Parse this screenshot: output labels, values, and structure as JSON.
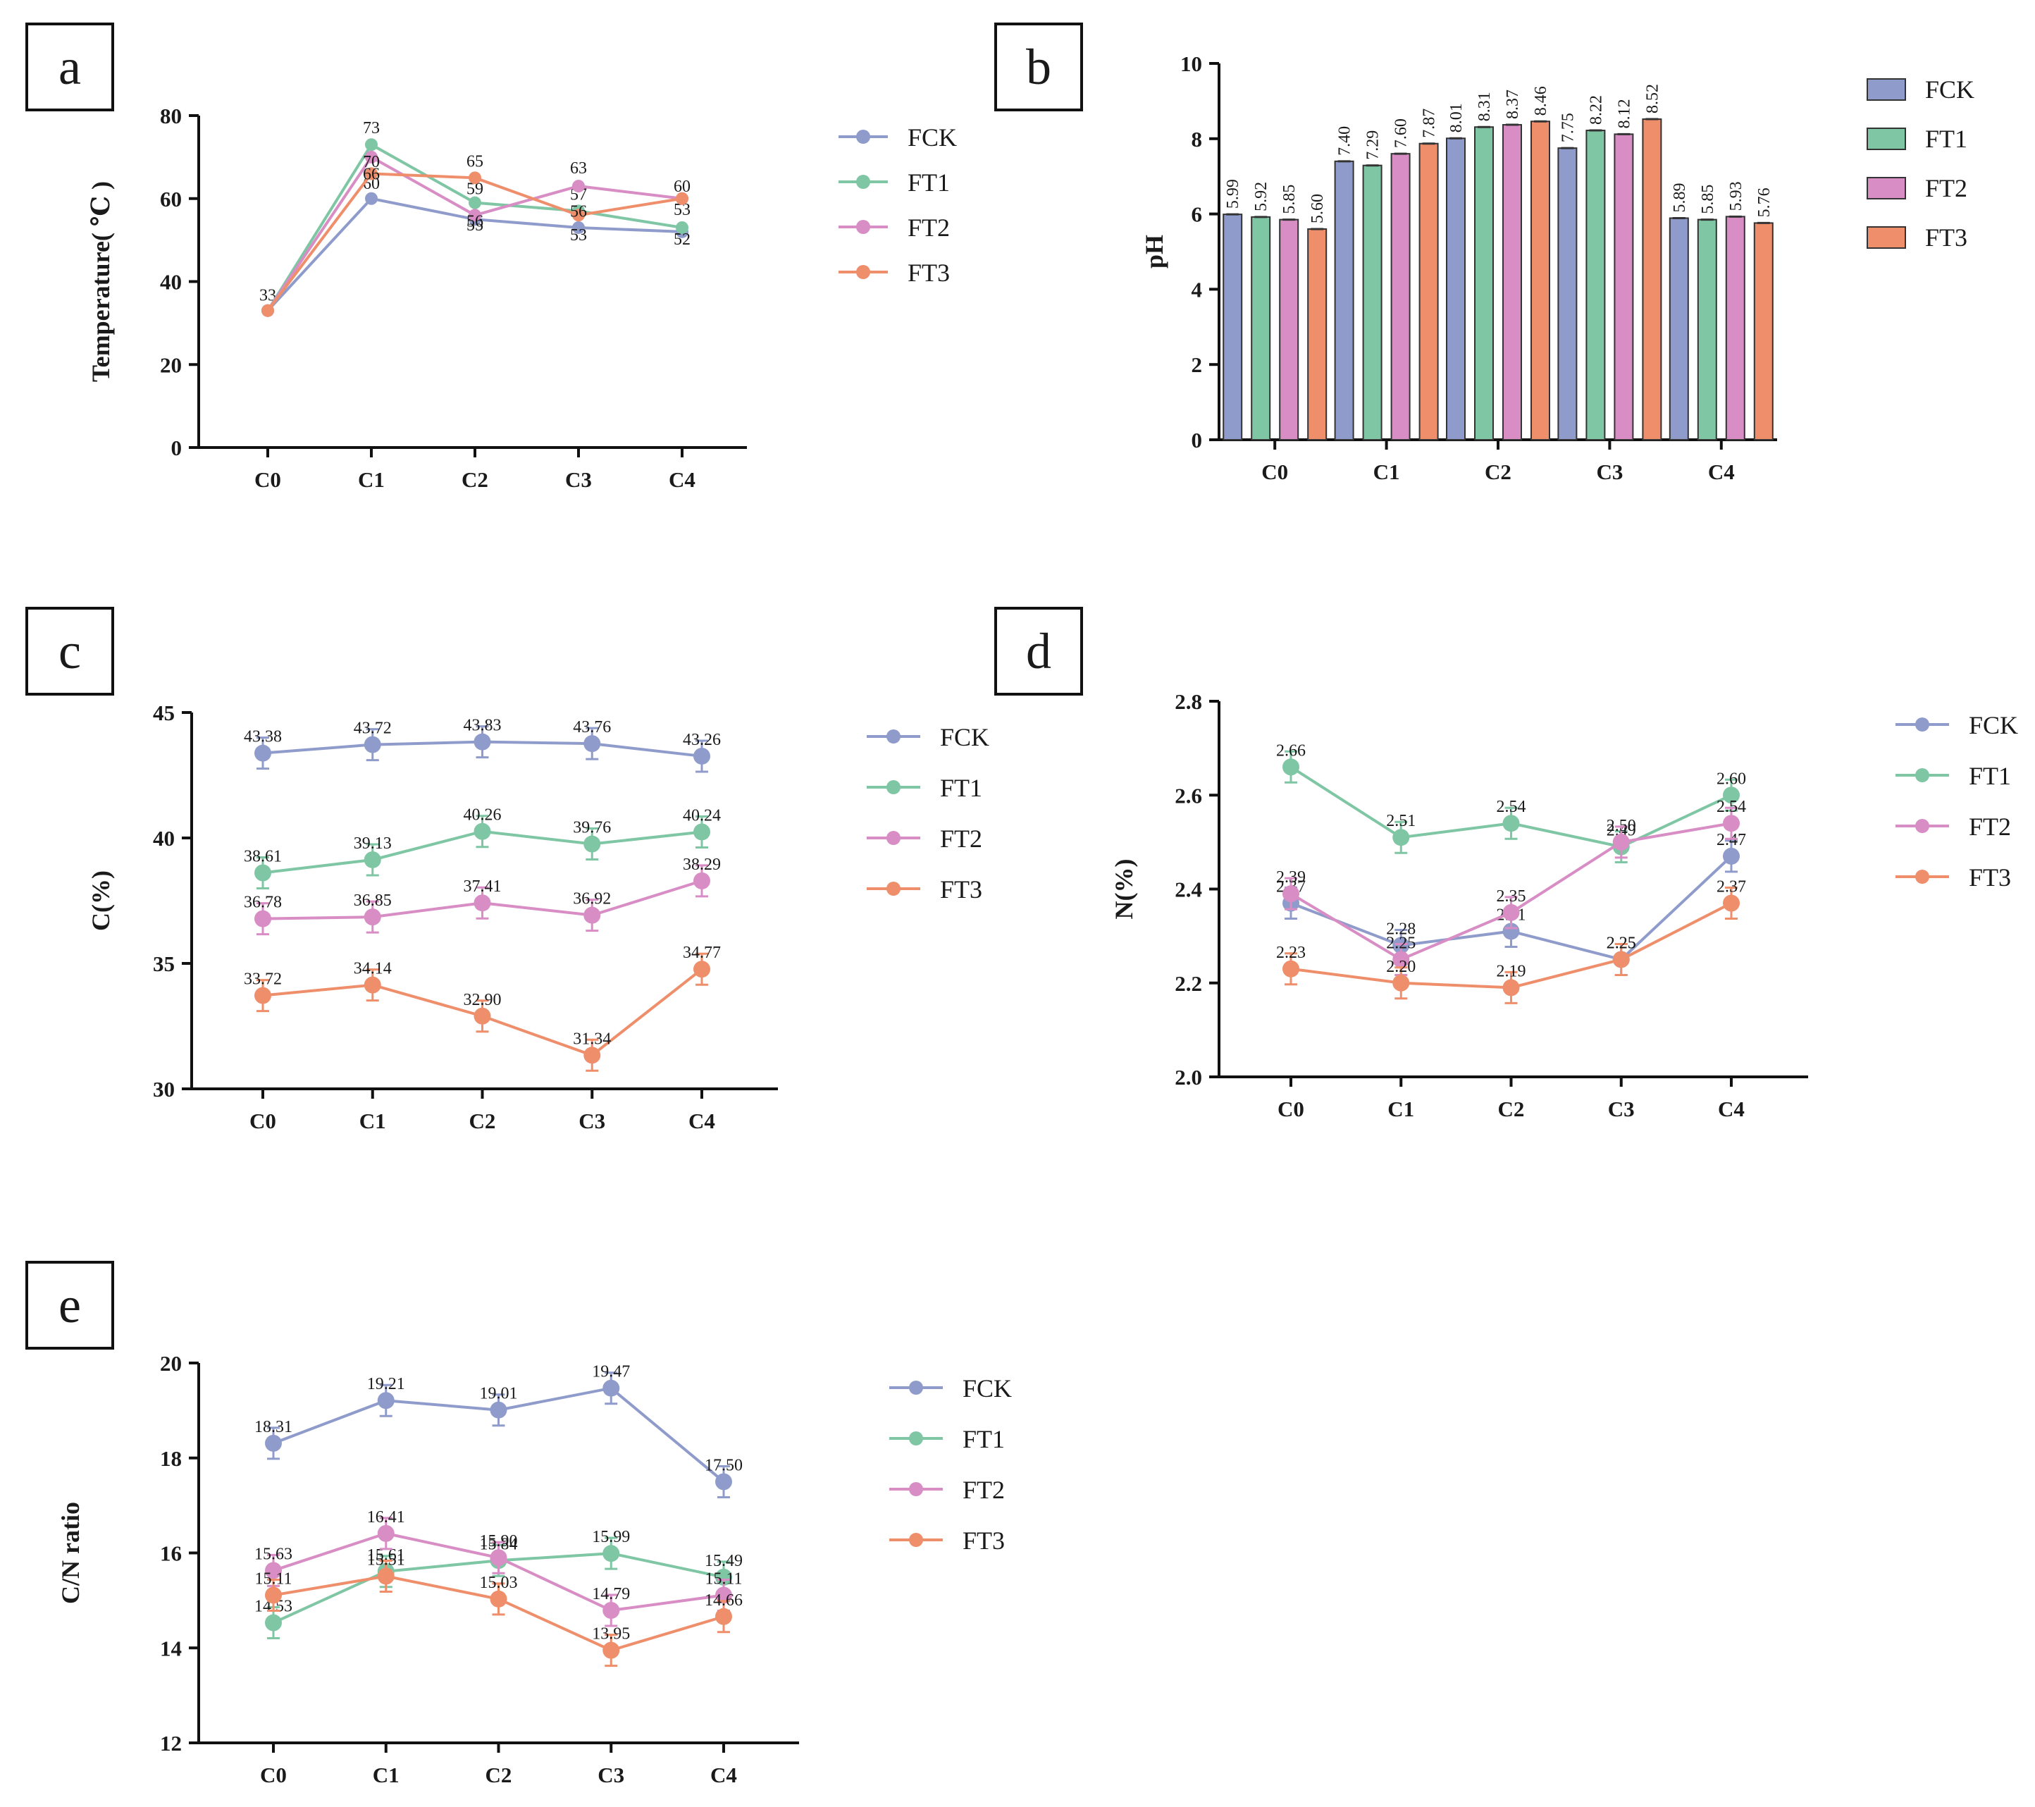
{
  "chart_data": [
    {
      "panel": "a",
      "type": "line",
      "categories": [
        "C0",
        "C1",
        "C2",
        "C3",
        "C4"
      ],
      "ylabel": "Temperature( ℃ )",
      "xlabel": "",
      "ylim": [
        0,
        80
      ],
      "yticks": [
        0,
        20,
        40,
        60,
        80
      ],
      "grid": false,
      "legend_position": "right",
      "error_bars": false,
      "decimals": 0,
      "series": [
        {
          "name": "FCK",
          "color": "#8F9CCB",
          "values": [
            33,
            60,
            55,
            53,
            52
          ],
          "show_labels": [
            true,
            true,
            true,
            true,
            true
          ]
        },
        {
          "name": "FT1",
          "color": "#7FC6A4",
          "values": [
            33,
            73,
            59,
            57,
            53
          ],
          "show_labels": [
            false,
            true,
            true,
            true,
            true
          ]
        },
        {
          "name": "FT2",
          "color": "#D88DC5",
          "values": [
            33,
            70,
            56,
            63,
            60
          ],
          "show_labels": [
            false,
            true,
            true,
            true,
            true
          ]
        },
        {
          "name": "FT3",
          "color": "#EE8E6B",
          "values": [
            33,
            66,
            65,
            56,
            60
          ],
          "show_labels": [
            false,
            true,
            true,
            true,
            false
          ]
        }
      ]
    },
    {
      "panel": "b",
      "type": "bar",
      "categories": [
        "C0",
        "C1",
        "C2",
        "C3",
        "C4"
      ],
      "ylabel": "pH",
      "xlabel": "",
      "ylim": [
        0,
        10
      ],
      "yticks": [
        0,
        2,
        4,
        6,
        8,
        10
      ],
      "grid": false,
      "legend_position": "right",
      "decimals": 2,
      "series": [
        {
          "name": "FCK",
          "color": "#8F9CCB",
          "values": [
            5.99,
            7.4,
            8.01,
            7.75,
            5.89
          ]
        },
        {
          "name": "FT1",
          "color": "#7FC6A4",
          "values": [
            5.92,
            7.29,
            8.31,
            8.22,
            5.85
          ]
        },
        {
          "name": "FT2",
          "color": "#D88DC5",
          "values": [
            5.85,
            7.6,
            8.37,
            8.12,
            5.93
          ]
        },
        {
          "name": "FT3",
          "color": "#EE8E6B",
          "values": [
            5.6,
            7.87,
            8.46,
            8.52,
            5.76
          ]
        }
      ]
    },
    {
      "panel": "c",
      "type": "line",
      "categories": [
        "C0",
        "C1",
        "C2",
        "C3",
        "C4"
      ],
      "ylabel": "C(%)",
      "xlabel": "",
      "ylim": [
        30,
        45
      ],
      "yticks": [
        30,
        35,
        40,
        45
      ],
      "grid": false,
      "legend_position": "right",
      "error_bars": true,
      "decimals": 2,
      "series": [
        {
          "name": "FCK",
          "color": "#8F9CCB",
          "values": [
            43.38,
            43.72,
            43.83,
            43.76,
            43.26
          ]
        },
        {
          "name": "FT1",
          "color": "#7FC6A4",
          "values": [
            38.61,
            39.13,
            40.26,
            39.76,
            40.24
          ]
        },
        {
          "name": "FT2",
          "color": "#D88DC5",
          "values": [
            36.78,
            36.85,
            37.41,
            36.92,
            38.29
          ]
        },
        {
          "name": "FT3",
          "color": "#EE8E6B",
          "values": [
            33.72,
            34.14,
            32.9,
            31.34,
            34.77
          ]
        }
      ]
    },
    {
      "panel": "d",
      "type": "line",
      "categories": [
        "C0",
        "C1",
        "C2",
        "C3",
        "C4"
      ],
      "ylabel": "N(%)",
      "xlabel": "",
      "ylim": [
        2.0,
        2.8
      ],
      "yticks": [
        2.0,
        2.2,
        2.4,
        2.6,
        2.8
      ],
      "grid": false,
      "legend_position": "right",
      "error_bars": true,
      "decimals": 2,
      "series": [
        {
          "name": "FCK",
          "color": "#8F9CCB",
          "values": [
            2.37,
            2.28,
            2.31,
            2.25,
            2.47
          ]
        },
        {
          "name": "FT1",
          "color": "#7FC6A4",
          "values": [
            2.66,
            2.51,
            2.54,
            2.49,
            2.6
          ]
        },
        {
          "name": "FT2",
          "color": "#D88DC5",
          "values": [
            2.39,
            2.25,
            2.35,
            2.5,
            2.54
          ]
        },
        {
          "name": "FT3",
          "color": "#EE8E6B",
          "values": [
            2.23,
            2.2,
            2.19,
            2.25,
            2.37
          ]
        }
      ]
    },
    {
      "panel": "e",
      "type": "line",
      "categories": [
        "C0",
        "C1",
        "C2",
        "C3",
        "C4"
      ],
      "ylabel": "C/N ratio",
      "xlabel": "",
      "ylim": [
        12,
        20
      ],
      "yticks": [
        12,
        14,
        16,
        18,
        20
      ],
      "grid": false,
      "legend_position": "right",
      "error_bars": true,
      "decimals": 2,
      "series": [
        {
          "name": "FCK",
          "color": "#8F9CCB",
          "values": [
            18.31,
            19.21,
            19.01,
            19.47,
            17.5
          ]
        },
        {
          "name": "FT1",
          "color": "#7FC6A4",
          "values": [
            14.53,
            15.61,
            15.84,
            15.99,
            15.49
          ]
        },
        {
          "name": "FT2",
          "color": "#D88DC5",
          "values": [
            15.63,
            16.41,
            15.9,
            14.79,
            15.11
          ]
        },
        {
          "name": "FT3",
          "color": "#EE8E6B",
          "values": [
            15.11,
            15.51,
            15.03,
            13.95,
            14.66
          ]
        }
      ]
    }
  ]
}
